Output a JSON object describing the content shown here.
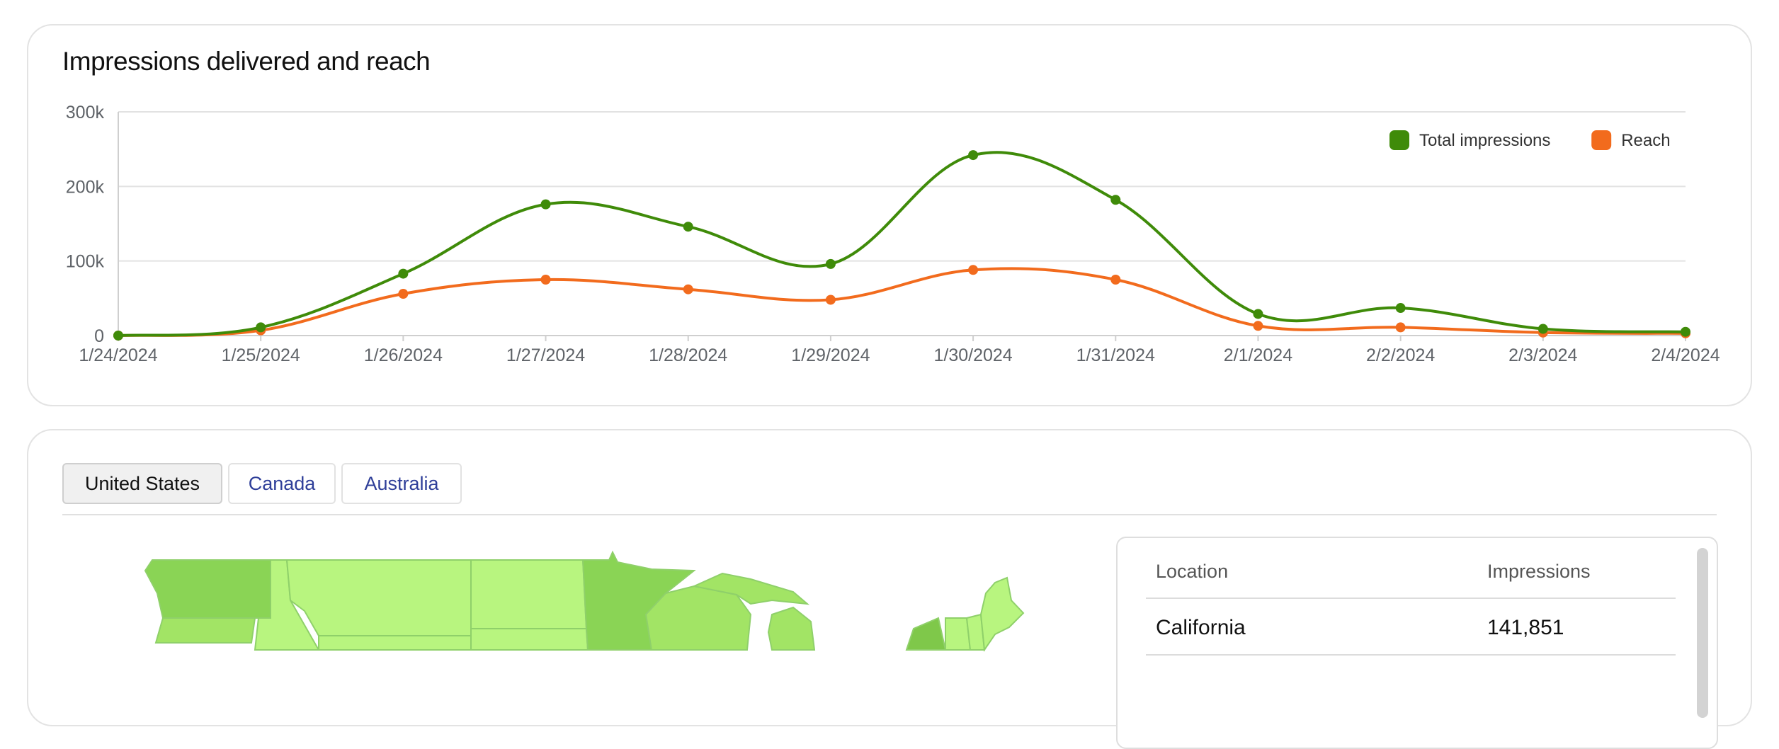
{
  "chart_card": {
    "title": "Impressions delivered and reach"
  },
  "chart_data": {
    "type": "line",
    "title": "Impressions delivered and reach",
    "x": [
      "1/24/2024",
      "1/25/2024",
      "1/26/2024",
      "1/27/2024",
      "1/28/2024",
      "1/29/2024",
      "1/30/2024",
      "1/31/2024",
      "2/1/2024",
      "2/2/2024",
      "2/3/2024",
      "2/4/2024"
    ],
    "y_ticks": [
      "0",
      "100k",
      "200k",
      "300k"
    ],
    "ylim": [
      0,
      300000
    ],
    "grid": true,
    "legend_position": "top-right",
    "series": [
      {
        "name": "Total impressions",
        "color": "#3f8b09",
        "values": [
          0,
          11000,
          83000,
          176000,
          146000,
          96000,
          242000,
          182000,
          29000,
          37000,
          9000,
          5000
        ]
      },
      {
        "name": "Reach",
        "color": "#f26b1d",
        "values": [
          0,
          7000,
          56000,
          75000,
          62000,
          48000,
          88000,
          75000,
          13000,
          11000,
          4000,
          3000
        ]
      }
    ]
  },
  "map_card": {
    "tabs": [
      {
        "label": "United States",
        "active": true
      },
      {
        "label": "Canada",
        "active": false
      },
      {
        "label": "Australia",
        "active": false
      }
    ],
    "table": {
      "columns": [
        "Location",
        "Impressions"
      ],
      "rows": [
        {
          "location": "California",
          "impressions": "141,851"
        }
      ]
    },
    "colors": {
      "light": "#b8f57f",
      "mid": "#a2e465",
      "dark": "#8ad455",
      "darker": "#7fc84a",
      "border": "#8fd06a"
    }
  }
}
